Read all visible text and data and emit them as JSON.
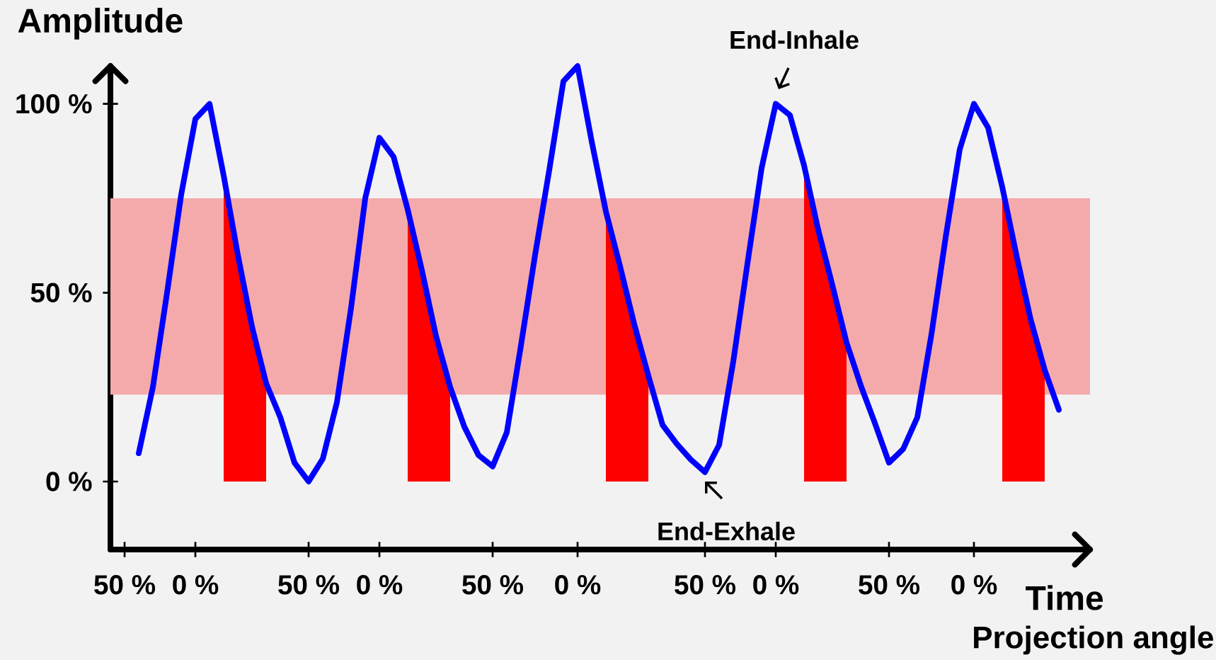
{
  "chart_data": {
    "type": "line",
    "xlabel": "Time",
    "ylabel": "Amplitude",
    "categories": [
      null,
      "50 %",
      null,
      null,
      null,
      null,
      "0 %",
      null,
      null,
      null,
      null,
      null,
      null,
      null,
      "50 %",
      null,
      null,
      null,
      null,
      "0 %",
      null,
      null,
      null,
      null,
      null,
      null,
      null,
      "50 %",
      null,
      null,
      null,
      null,
      null,
      "0 %",
      null,
      null,
      null,
      null,
      null,
      null,
      null,
      null,
      "50 %",
      null,
      null,
      null,
      null,
      "0 %",
      null,
      null,
      null,
      null,
      null,
      null,
      null,
      "50 %",
      null,
      null,
      null,
      null,
      null,
      "0 %",
      null,
      null,
      null,
      null,
      null,
      null,
      null,
      null
    ],
    "ylim": [
      -18,
      110
    ],
    "yticks": [
      {
        "value": 0,
        "label": "0 %"
      },
      {
        "value": 50,
        "label": "50 %"
      },
      {
        "value": 100,
        "label": "100 %"
      }
    ],
    "bands": [
      {
        "axis": "y",
        "from": 23,
        "to": 75,
        "color": "#f4aaaa"
      }
    ],
    "series": [
      {
        "type": "area",
        "color": "#ff0000",
        "values": [
          null,
          null,
          null,
          null,
          null,
          null,
          null,
          null,
          81,
          60,
          41,
          26,
          null,
          null,
          null,
          null,
          null,
          null,
          null,
          null,
          null,
          null,
          null,
          null,
          null,
          null,
          null,
          null,
          null,
          null,
          null,
          null,
          null,
          null,
          null,
          null,
          null,
          null,
          null,
          null,
          null,
          null,
          null,
          null,
          null,
          null,
          null,
          null,
          null,
          null,
          null,
          null,
          null,
          null,
          null,
          null,
          null,
          null,
          null,
          null,
          null,
          null,
          null,
          null,
          null,
          null,
          null,
          null,
          null,
          null
        ]
      },
      {
        "type": "area",
        "color": "#ff0000",
        "values": [
          null,
          null,
          null,
          null,
          null,
          null,
          null,
          null,
          null,
          null,
          null,
          null,
          null,
          null,
          null,
          null,
          null,
          null,
          null,
          null,
          null,
          72,
          56,
          38.5,
          25,
          null,
          null,
          null,
          null,
          null,
          null,
          null,
          null,
          null,
          null,
          null,
          null,
          null,
          null,
          null,
          null,
          null,
          null,
          null,
          null,
          null,
          null,
          null,
          null,
          null,
          null,
          null,
          null,
          null,
          null,
          null,
          null,
          null,
          null,
          null,
          null,
          null,
          null,
          null,
          null,
          null,
          null,
          null,
          null,
          null
        ]
      },
      {
        "type": "area",
        "color": "#ff0000",
        "values": [
          null,
          null,
          null,
          null,
          null,
          null,
          null,
          null,
          null,
          null,
          null,
          null,
          null,
          null,
          null,
          null,
          null,
          null,
          null,
          null,
          null,
          null,
          null,
          null,
          null,
          null,
          null,
          null,
          null,
          null,
          null,
          null,
          null,
          null,
          null,
          71.5,
          57,
          41.7,
          28,
          null,
          null,
          null,
          null,
          null,
          null,
          null,
          null,
          null,
          null,
          null,
          null,
          null,
          null,
          null,
          null,
          null,
          null,
          null,
          null,
          null,
          null,
          null,
          null,
          null,
          null,
          null,
          null,
          null,
          null,
          null
        ]
      },
      {
        "type": "area",
        "color": "#ff0000",
        "values": [
          null,
          null,
          null,
          null,
          null,
          null,
          null,
          null,
          null,
          null,
          null,
          null,
          null,
          null,
          null,
          null,
          null,
          null,
          null,
          null,
          null,
          null,
          null,
          null,
          null,
          null,
          null,
          null,
          null,
          null,
          null,
          null,
          null,
          null,
          null,
          null,
          null,
          null,
          null,
          null,
          null,
          null,
          null,
          null,
          null,
          null,
          null,
          null,
          null,
          83.7,
          66.6,
          52,
          36.8,
          null,
          null,
          null,
          null,
          null,
          null,
          null,
          null,
          null,
          null,
          null,
          null,
          null,
          null,
          null,
          null,
          null
        ]
      },
      {
        "type": "area",
        "color": "#ff0000",
        "values": [
          null,
          null,
          null,
          null,
          null,
          null,
          null,
          null,
          null,
          null,
          null,
          null,
          null,
          null,
          null,
          null,
          null,
          null,
          null,
          null,
          null,
          null,
          null,
          null,
          null,
          null,
          null,
          null,
          null,
          null,
          null,
          null,
          null,
          null,
          null,
          null,
          null,
          null,
          null,
          null,
          null,
          null,
          null,
          null,
          null,
          null,
          null,
          null,
          null,
          null,
          null,
          null,
          null,
          null,
          null,
          null,
          null,
          null,
          null,
          null,
          null,
          null,
          null,
          78,
          60,
          43,
          29.5,
          null,
          null,
          null
        ]
      },
      {
        "color": "#0000ff",
        "line_style": "solid",
        "values": [
          null,
          null,
          7.5,
          25,
          50,
          76,
          96,
          100,
          81,
          60,
          41,
          26,
          17,
          5,
          0,
          6,
          21,
          46,
          75,
          91,
          86,
          72,
          56,
          38.5,
          25,
          14.5,
          7,
          4,
          13,
          36,
          60,
          82.5,
          106,
          110,
          90,
          71.5,
          57,
          41.7,
          28,
          15,
          10,
          5.8,
          2.5,
          9.7,
          31.8,
          57.7,
          83,
          100,
          97,
          83.7,
          66.6,
          52,
          36.8,
          25.5,
          15.5,
          5,
          8.6,
          17,
          39,
          64.6,
          88,
          100,
          93.7,
          78,
          60,
          43,
          29.5,
          19,
          null,
          null
        ]
      }
    ],
    "annotations": [
      "End-Inhale",
      "End-Exhale",
      "Projection angle"
    ]
  }
}
